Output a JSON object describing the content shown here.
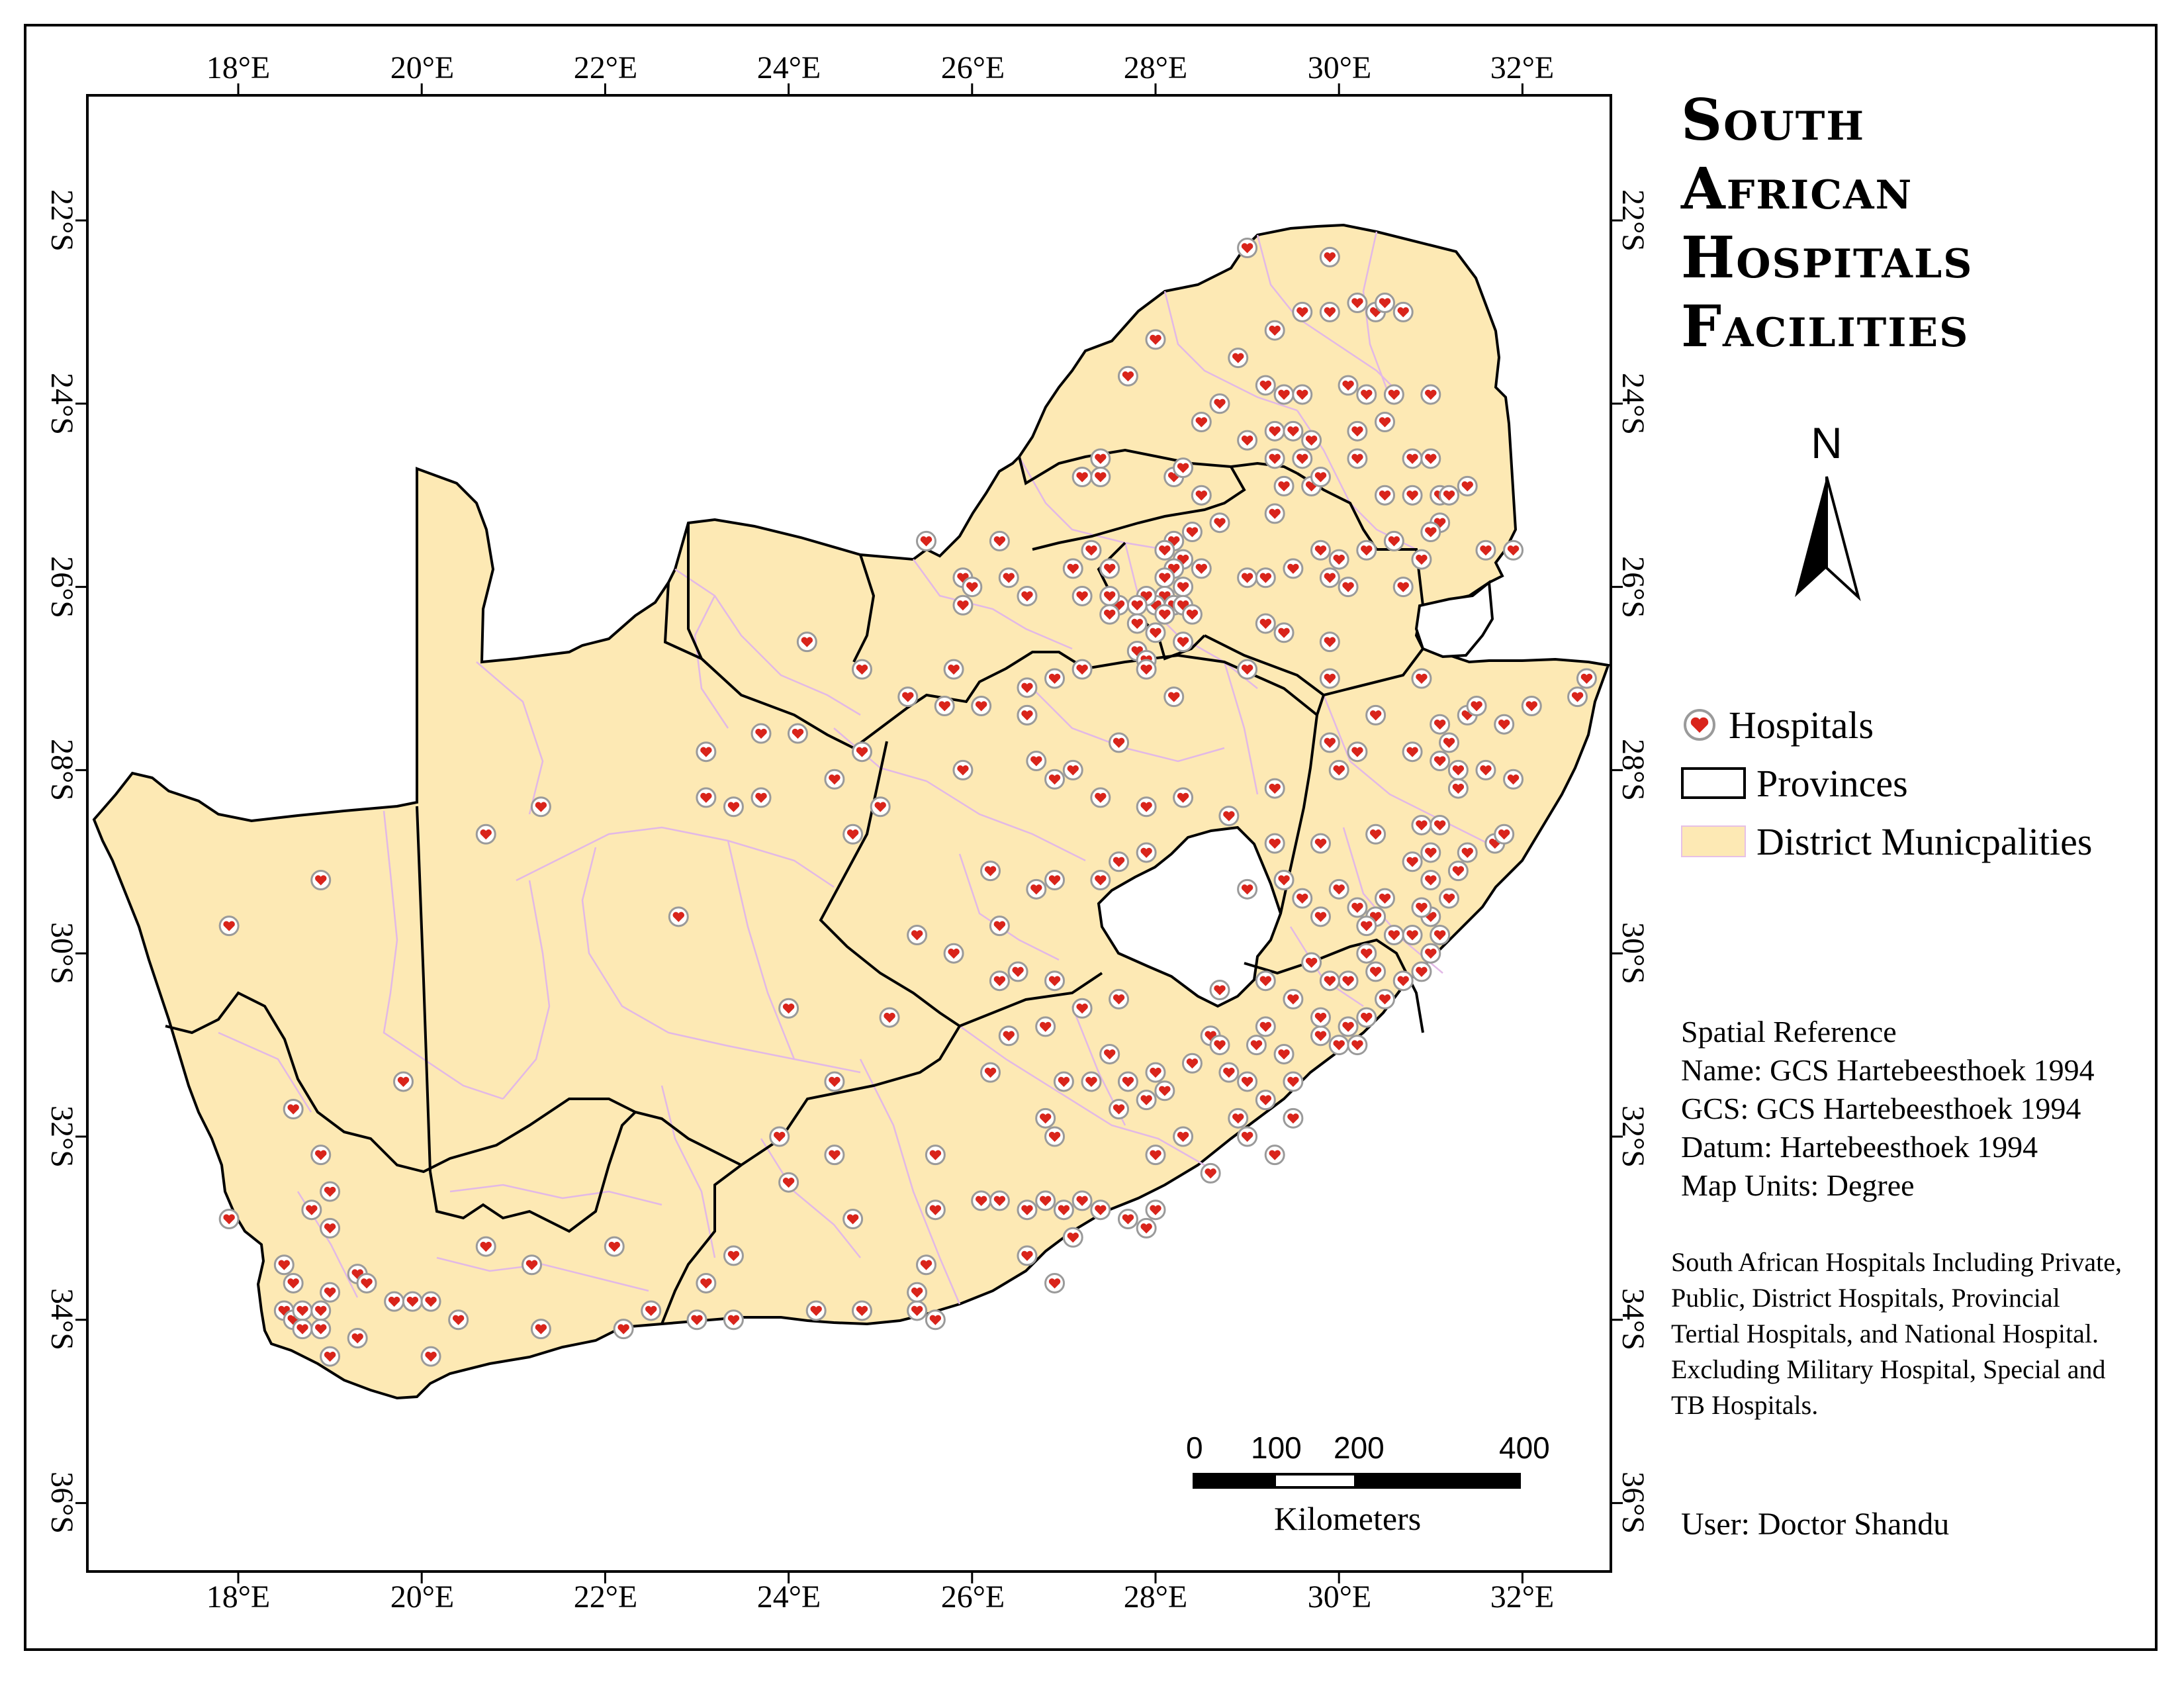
{
  "title": {
    "line1": "South",
    "line2": "African",
    "line3": "Hospitals",
    "line4": "Facilities"
  },
  "north_arrow": {
    "label": "N"
  },
  "legend": {
    "hospitals": "Hospitals",
    "provinces": "Provinces",
    "districts": "District Municpalities"
  },
  "spatial_reference": {
    "heading": "Spatial Reference",
    "name": "Name: GCS Hartebeesthoek 1994",
    "gcs": "GCS: GCS Hartebeesthoek 1994",
    "datum": "Datum: Hartebeesthoek 1994",
    "units": "Map Units: Degree"
  },
  "note": "South African Hospitals Including Private, Public, District Hospitals, Provincial Tertial Hospitals, and National Hospital.  Excluding Military Hospital, Special and TB Hospitals.",
  "user": "User: Doctor Shandu",
  "scale_bar": {
    "v0": "0",
    "v100": "100",
    "v200": "200",
    "v400": "400",
    "unit": "Kilometers"
  },
  "axes": {
    "longitude_labels": [
      "18°E",
      "20°E",
      "22°E",
      "24°E",
      "26°E",
      "28°E",
      "30°E",
      "32°E"
    ],
    "latitude_labels": [
      "22°S",
      "24°S",
      "26°S",
      "28°S",
      "30°S",
      "32°S",
      "34°S",
      "36°S"
    ]
  },
  "colors": {
    "district_fill": "#fde9b4",
    "district_border": "#e2b8e6",
    "province_border": "#000000",
    "hospital_marker": "#d9241b"
  },
  "hospitals": [
    [
      29.0,
      -22.3
    ],
    [
      29.9,
      -22.4
    ],
    [
      29.3,
      -23.2
    ],
    [
      29.6,
      -23.0
    ],
    [
      29.9,
      -23.0
    ],
    [
      30.2,
      -22.9
    ],
    [
      30.4,
      -23.0
    ],
    [
      30.5,
      -22.9
    ],
    [
      30.7,
      -23.0
    ],
    [
      28.0,
      -23.3
    ],
    [
      28.9,
      -23.5
    ],
    [
      28.7,
      -24.0
    ],
    [
      29.2,
      -23.8
    ],
    [
      29.4,
      -23.9
    ],
    [
      29.6,
      -23.9
    ],
    [
      30.1,
      -23.8
    ],
    [
      30.3,
      -23.9
    ],
    [
      30.6,
      -23.9
    ],
    [
      31.0,
      -23.9
    ],
    [
      27.7,
      -23.7
    ],
    [
      28.5,
      -24.2
    ],
    [
      29.0,
      -24.4
    ],
    [
      29.3,
      -24.3
    ],
    [
      29.5,
      -24.3
    ],
    [
      29.7,
      -24.4
    ],
    [
      30.2,
      -24.3
    ],
    [
      30.5,
      -24.2
    ],
    [
      29.3,
      -24.6
    ],
    [
      29.6,
      -24.6
    ],
    [
      30.2,
      -24.6
    ],
    [
      30.8,
      -24.6
    ],
    [
      31.0,
      -24.6
    ],
    [
      27.4,
      -24.6
    ],
    [
      27.2,
      -24.8
    ],
    [
      27.4,
      -24.8
    ],
    [
      28.2,
      -24.8
    ],
    [
      28.3,
      -24.7
    ],
    [
      28.5,
      -25.0
    ],
    [
      29.4,
      -24.9
    ],
    [
      29.7,
      -24.9
    ],
    [
      29.8,
      -24.8
    ],
    [
      30.5,
      -25.0
    ],
    [
      30.8,
      -25.0
    ],
    [
      31.1,
      -25.0
    ],
    [
      31.2,
      -25.0
    ],
    [
      31.4,
      -24.9
    ],
    [
      31.1,
      -25.3
    ],
    [
      31.0,
      -25.4
    ],
    [
      31.6,
      -25.6
    ],
    [
      31.9,
      -25.6
    ],
    [
      30.9,
      -25.7
    ],
    [
      29.3,
      -25.2
    ],
    [
      28.7,
      -25.3
    ],
    [
      28.4,
      -25.4
    ],
    [
      28.2,
      -25.5
    ],
    [
      28.1,
      -25.6
    ],
    [
      28.3,
      -25.7
    ],
    [
      28.5,
      -25.8
    ],
    [
      28.2,
      -25.8
    ],
    [
      28.1,
      -25.9
    ],
    [
      28.3,
      -26.0
    ],
    [
      28.1,
      -26.1
    ],
    [
      28.2,
      -26.2
    ],
    [
      28.0,
      -26.2
    ],
    [
      28.3,
      -26.2
    ],
    [
      28.4,
      -26.3
    ],
    [
      28.1,
      -26.3
    ],
    [
      27.9,
      -26.1
    ],
    [
      27.8,
      -26.2
    ],
    [
      27.6,
      -26.2
    ],
    [
      27.5,
      -26.1
    ],
    [
      27.8,
      -26.4
    ],
    [
      28.0,
      -26.5
    ],
    [
      27.8,
      -26.7
    ],
    [
      27.9,
      -26.8
    ],
    [
      28.3,
      -26.6
    ],
    [
      27.3,
      -25.6
    ],
    [
      27.5,
      -25.8
    ],
    [
      27.1,
      -25.8
    ],
    [
      27.2,
      -26.1
    ],
    [
      27.5,
      -26.3
    ],
    [
      26.4,
      -25.9
    ],
    [
      26.6,
      -26.1
    ],
    [
      25.9,
      -25.9
    ],
    [
      25.9,
      -26.2
    ],
    [
      25.5,
      -25.5
    ],
    [
      26.3,
      -25.5
    ],
    [
      26.0,
      -26.0
    ],
    [
      29.0,
      -25.9
    ],
    [
      29.2,
      -25.9
    ],
    [
      29.5,
      -25.8
    ],
    [
      29.8,
      -25.6
    ],
    [
      30.0,
      -25.7
    ],
    [
      30.3,
      -25.6
    ],
    [
      30.6,
      -25.5
    ],
    [
      29.9,
      -25.9
    ],
    [
      30.1,
      -26.0
    ],
    [
      29.2,
      -26.4
    ],
    [
      29.4,
      -26.5
    ],
    [
      29.9,
      -26.6
    ],
    [
      30.7,
      -26.0
    ],
    [
      29.0,
      -26.9
    ],
    [
      29.9,
      -27.0
    ],
    [
      27.9,
      -26.9
    ],
    [
      28.2,
      -27.2
    ],
    [
      27.2,
      -26.9
    ],
    [
      26.9,
      -27.0
    ],
    [
      26.6,
      -27.1
    ],
    [
      26.6,
      -27.4
    ],
    [
      26.1,
      -27.3
    ],
    [
      25.8,
      -26.9
    ],
    [
      25.7,
      -27.3
    ],
    [
      24.2,
      -26.6
    ],
    [
      24.8,
      -26.9
    ],
    [
      25.3,
      -27.2
    ],
    [
      24.1,
      -27.6
    ],
    [
      23.7,
      -27.6
    ],
    [
      23.1,
      -27.8
    ],
    [
      23.7,
      -28.3
    ],
    [
      23.4,
      -28.4
    ],
    [
      23.1,
      -28.3
    ],
    [
      24.8,
      -27.8
    ],
    [
      24.5,
      -28.1
    ],
    [
      25.0,
      -28.4
    ],
    [
      24.7,
      -28.7
    ],
    [
      25.9,
      -28.0
    ],
    [
      22.8,
      -29.6
    ],
    [
      21.3,
      -28.4
    ],
    [
      20.7,
      -28.7
    ],
    [
      18.9,
      -29.2
    ],
    [
      17.9,
      -29.7
    ],
    [
      24.0,
      -30.6
    ],
    [
      25.1,
      -30.7
    ],
    [
      19.8,
      -31.4
    ],
    [
      24.5,
      -31.4
    ],
    [
      23.9,
      -32.0
    ],
    [
      18.6,
      -31.7
    ],
    [
      18.9,
      -32.2
    ],
    [
      19.0,
      -32.6
    ],
    [
      19.0,
      -33.0
    ],
    [
      18.8,
      -32.8
    ],
    [
      17.9,
      -32.9
    ],
    [
      18.5,
      -33.4
    ],
    [
      18.6,
      -33.6
    ],
    [
      18.5,
      -33.9
    ],
    [
      18.6,
      -34.0
    ],
    [
      18.7,
      -33.9
    ],
    [
      18.7,
      -34.1
    ],
    [
      18.9,
      -33.9
    ],
    [
      18.9,
      -34.1
    ],
    [
      19.0,
      -33.7
    ],
    [
      19.3,
      -33.5
    ],
    [
      19.4,
      -33.6
    ],
    [
      19.7,
      -33.8
    ],
    [
      19.9,
      -33.8
    ],
    [
      20.1,
      -33.8
    ],
    [
      20.4,
      -34.0
    ],
    [
      20.1,
      -34.4
    ],
    [
      19.3,
      -34.2
    ],
    [
      19.0,
      -34.4
    ],
    [
      21.2,
      -33.4
    ],
    [
      21.3,
      -34.1
    ],
    [
      20.7,
      -33.2
    ],
    [
      22.1,
      -33.2
    ],
    [
      22.5,
      -33.9
    ],
    [
      22.2,
      -34.1
    ],
    [
      23.1,
      -33.6
    ],
    [
      23.4,
      -33.3
    ],
    [
      23.0,
      -34.0
    ],
    [
      23.4,
      -34.0
    ],
    [
      24.3,
      -33.9
    ],
    [
      24.8,
      -33.9
    ],
    [
      25.4,
      -33.9
    ],
    [
      25.6,
      -34.0
    ],
    [
      25.4,
      -33.7
    ],
    [
      25.5,
      -33.4
    ],
    [
      24.0,
      -32.5
    ],
    [
      24.5,
      -32.2
    ],
    [
      24.7,
      -32.9
    ],
    [
      26.6,
      -33.3
    ],
    [
      26.9,
      -33.6
    ],
    [
      25.6,
      -32.8
    ],
    [
      25.6,
      -32.2
    ],
    [
      26.1,
      -32.7
    ],
    [
      26.3,
      -32.7
    ],
    [
      26.6,
      -32.8
    ],
    [
      26.8,
      -32.7
    ],
    [
      27.0,
      -32.8
    ],
    [
      27.2,
      -32.7
    ],
    [
      27.4,
      -32.8
    ],
    [
      27.7,
      -32.9
    ],
    [
      27.9,
      -33.0
    ],
    [
      28.0,
      -32.8
    ],
    [
      28.6,
      -32.4
    ],
    [
      27.1,
      -33.1
    ],
    [
      26.9,
      -32.0
    ],
    [
      26.8,
      -31.8
    ],
    [
      26.2,
      -31.3
    ],
    [
      26.4,
      -30.9
    ],
    [
      26.8,
      -30.8
    ],
    [
      27.2,
      -30.6
    ],
    [
      27.6,
      -30.5
    ],
    [
      27.5,
      -31.1
    ],
    [
      27.0,
      -31.4
    ],
    [
      27.3,
      -31.4
    ],
    [
      27.7,
      -31.4
    ],
    [
      28.0,
      -31.3
    ],
    [
      27.6,
      -31.7
    ],
    [
      27.9,
      -31.6
    ],
    [
      28.1,
      -31.5
    ],
    [
      28.4,
      -31.2
    ],
    [
      28.6,
      -30.9
    ],
    [
      28.8,
      -31.3
    ],
    [
      29.0,
      -31.4
    ],
    [
      28.9,
      -31.8
    ],
    [
      29.2,
      -31.6
    ],
    [
      29.5,
      -31.4
    ],
    [
      29.4,
      -31.1
    ],
    [
      29.8,
      -30.9
    ],
    [
      29.2,
      -30.8
    ],
    [
      29.1,
      -31.0
    ],
    [
      28.7,
      -31.0
    ],
    [
      28.3,
      -32.0
    ],
    [
      28.0,
      -32.2
    ],
    [
      29.0,
      -32.0
    ],
    [
      29.3,
      -32.2
    ],
    [
      29.5,
      -31.8
    ],
    [
      30.0,
      -31.0
    ],
    [
      30.1,
      -30.8
    ],
    [
      30.3,
      -30.7
    ],
    [
      30.5,
      -30.5
    ],
    [
      30.7,
      -30.3
    ],
    [
      30.9,
      -30.2
    ],
    [
      31.0,
      -30.0
    ],
    [
      31.1,
      -29.8
    ],
    [
      31.0,
      -29.6
    ],
    [
      31.2,
      -29.4
    ],
    [
      31.3,
      -29.1
    ],
    [
      31.4,
      -28.9
    ],
    [
      31.7,
      -28.8
    ],
    [
      31.8,
      -28.7
    ],
    [
      30.5,
      -29.4
    ],
    [
      30.4,
      -29.6
    ],
    [
      30.2,
      -29.5
    ],
    [
      30.3,
      -29.7
    ],
    [
      30.6,
      -29.8
    ],
    [
      30.8,
      -29.8
    ],
    [
      30.9,
      -29.5
    ],
    [
      31.0,
      -29.2
    ],
    [
      30.8,
      -29.0
    ],
    [
      31.0,
      -28.9
    ],
    [
      31.1,
      -28.6
    ],
    [
      30.9,
      -28.6
    ],
    [
      30.4,
      -28.7
    ],
    [
      29.8,
      -28.8
    ],
    [
      29.3,
      -28.8
    ],
    [
      29.4,
      -29.2
    ],
    [
      29.6,
      -29.4
    ],
    [
      29.8,
      -29.6
    ],
    [
      30.0,
      -29.3
    ],
    [
      30.3,
      -30.0
    ],
    [
      30.4,
      -30.2
    ],
    [
      30.1,
      -30.3
    ],
    [
      29.9,
      -30.3
    ],
    [
      29.5,
      -30.5
    ],
    [
      29.2,
      -30.3
    ],
    [
      29.8,
      -30.7
    ],
    [
      30.2,
      -31.0
    ],
    [
      29.7,
      -30.1
    ],
    [
      30.0,
      -28.0
    ],
    [
      30.2,
      -27.8
    ],
    [
      30.8,
      -27.8
    ],
    [
      31.1,
      -27.9
    ],
    [
      31.3,
      -28.0
    ],
    [
      31.6,
      -28.0
    ],
    [
      31.9,
      -28.1
    ],
    [
      31.3,
      -28.2
    ],
    [
      31.2,
      -27.7
    ],
    [
      31.1,
      -27.5
    ],
    [
      31.4,
      -27.4
    ],
    [
      31.8,
      -27.5
    ],
    [
      31.5,
      -27.3
    ],
    [
      32.1,
      -27.3
    ],
    [
      32.6,
      -27.2
    ],
    [
      32.7,
      -27.0
    ],
    [
      30.9,
      -27.0
    ],
    [
      30.4,
      -27.4
    ],
    [
      29.9,
      -27.7
    ],
    [
      29.3,
      -28.2
    ],
    [
      28.8,
      -28.5
    ],
    [
      28.3,
      -28.3
    ],
    [
      27.9,
      -28.4
    ],
    [
      27.4,
      -28.3
    ],
    [
      26.9,
      -28.1
    ],
    [
      27.6,
      -27.7
    ],
    [
      27.1,
      -28.0
    ],
    [
      26.7,
      -27.9
    ],
    [
      26.6,
      -27.4
    ],
    [
      27.6,
      -29.0
    ],
    [
      27.9,
      -28.9
    ],
    [
      27.4,
      -29.2
    ],
    [
      26.9,
      -29.2
    ],
    [
      26.2,
      -29.1
    ],
    [
      26.7,
      -29.3
    ],
    [
      26.3,
      -29.7
    ],
    [
      25.4,
      -29.8
    ],
    [
      25.8,
      -30.0
    ],
    [
      26.3,
      -30.3
    ],
    [
      26.5,
      -30.2
    ],
    [
      26.9,
      -30.3
    ],
    [
      28.7,
      -30.4
    ],
    [
      29.0,
      -29.3
    ]
  ]
}
